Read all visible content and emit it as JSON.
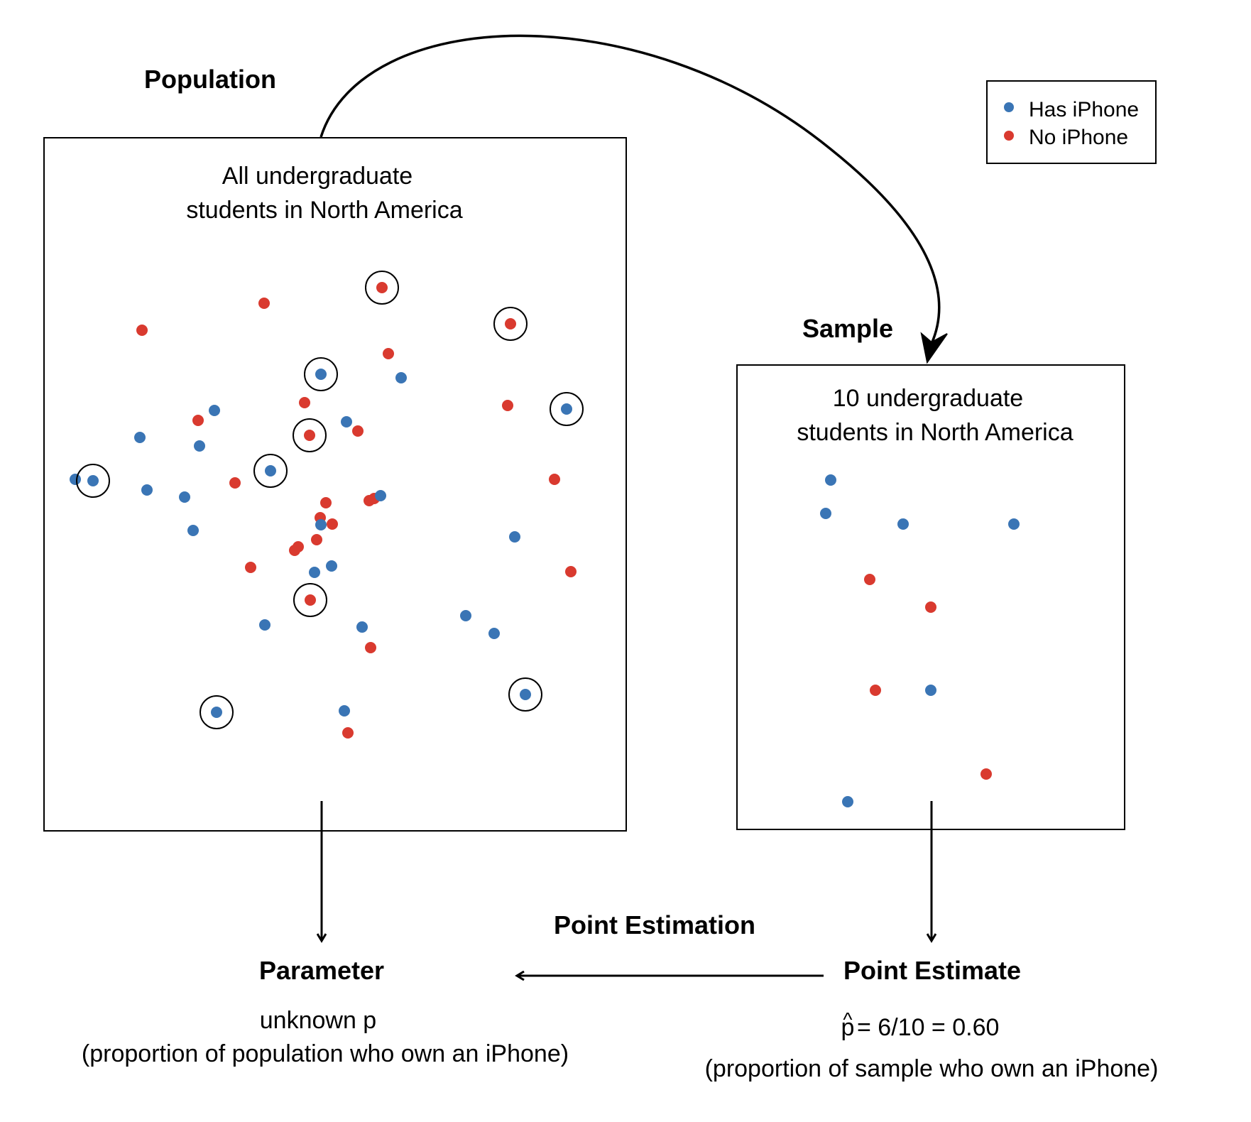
{
  "population": {
    "heading": "Population",
    "box_line1": "All undergraduate",
    "box_line2": "students in North America"
  },
  "sample": {
    "heading": "Sample",
    "box_line1": "10 undergraduate",
    "box_line2": "students in North America"
  },
  "legend": {
    "has_label": "Has iPhone",
    "no_label": "No iPhone"
  },
  "colors": {
    "has": "#3a75b5",
    "no": "#d93a2f"
  },
  "parameter": {
    "title": "Parameter",
    "line1": "unknown p",
    "line2": "(proportion of population who own an iPhone)"
  },
  "point_estimation": "Point Estimation",
  "point_estimate": {
    "title": "Point Estimate",
    "hat": "^",
    "symbol": "p",
    "formula": "= 6/10 = 0.60",
    "line2": "(proportion of sample who own an iPhone)"
  }
}
